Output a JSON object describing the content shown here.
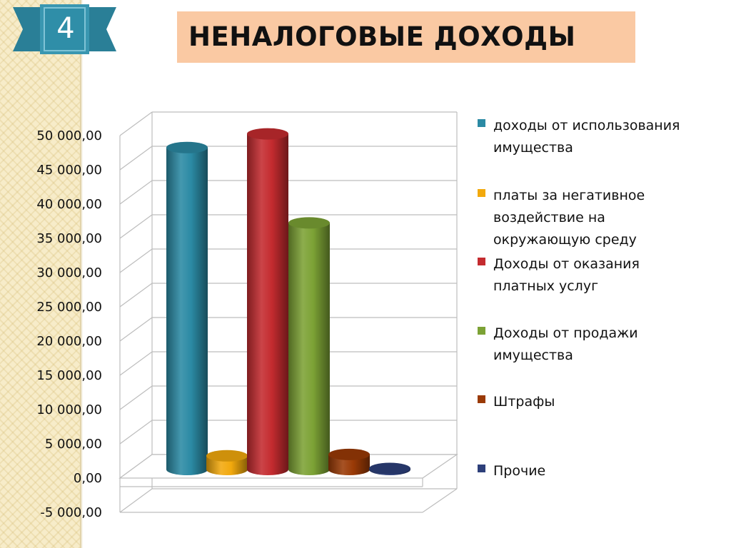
{
  "slide": {
    "number": "4",
    "title": "НЕНАЛОГОВЫЕ ДОХОДЫ"
  },
  "colors": {
    "ribbon": "#2f8ea8",
    "title_bg": "#fac9a3"
  },
  "chart_data": {
    "type": "bar",
    "style": "3d-cylinder",
    "title": "",
    "xlabel": "",
    "ylabel": "",
    "ylim": [
      -5000,
      50000
    ],
    "y_ticks": [
      "-5 000,00",
      "0,00",
      "5 000,00",
      "10 000,00",
      "15 000,00",
      "20 000,00",
      "25 000,00",
      "30 000,00",
      "35 000,00",
      "40 000,00",
      "45 000,00",
      "50 000,00"
    ],
    "grid": true,
    "legend_position": "right",
    "series": [
      {
        "name": "доходы от использования имущества",
        "legend_lines": [
          "доходы от использования",
          "имущества"
        ],
        "value": 47000,
        "color": "#2b8aa4"
      },
      {
        "name": "платы за негативное воздействие на окружающую среду",
        "legend_lines": [
          "платы за негативное",
          "воздействие на",
          "окружающую среду"
        ],
        "value": 2000,
        "color": "#f2a90d"
      },
      {
        "name": "Доходы от оказания платных услуг",
        "legend_lines": [
          "Доходы от оказания",
          "платных услуг"
        ],
        "value": 49000,
        "color": "#c42b2f"
      },
      {
        "name": "Доходы от продажи имущества",
        "legend_lines": [
          "Доходы от продажи",
          "имущества"
        ],
        "value": 36000,
        "color": "#7ca235"
      },
      {
        "name": "Штрафы",
        "legend_lines": [
          "Штрафы"
        ],
        "value": 2200,
        "color": "#9a3a06"
      },
      {
        "name": "Прочие",
        "legend_lines": [
          "Прочие"
        ],
        "value": 150,
        "color": "#2d3f7a"
      }
    ]
  }
}
